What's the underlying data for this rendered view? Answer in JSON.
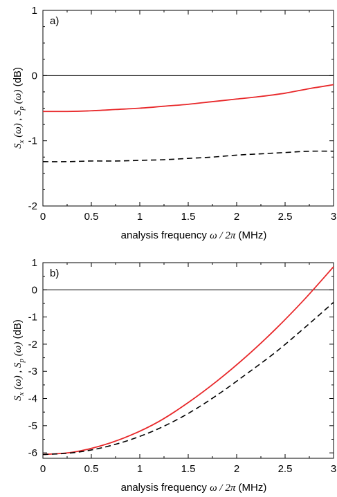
{
  "chart_data": [
    {
      "type": "line",
      "panel_label": "a)",
      "xlabel": "analysis frequency",
      "xlabel_math": "ω / 2π",
      "xlabel_unit": "(MHz)",
      "ylabel_parts": [
        "S",
        "x",
        " (ω) ,  ",
        "S",
        "p",
        " (ω)",
        "  (dB)"
      ],
      "xlim": [
        0,
        3
      ],
      "ylim": [
        -2,
        1
      ],
      "xticks": [
        "0",
        "0.5",
        "1",
        "1.5",
        "2",
        "2.5",
        "3"
      ],
      "xtick_values": [
        0,
        0.5,
        1,
        1.5,
        2,
        2.5,
        3
      ],
      "yticks": [
        "1",
        "0",
        "-1",
        "-2"
      ],
      "ytick_values": [
        1,
        0,
        -1,
        -2
      ],
      "reference_line": 0,
      "series": [
        {
          "style": "solid",
          "color": "#e8282a",
          "x": [
            0,
            0.25,
            0.5,
            0.75,
            1.0,
            1.25,
            1.5,
            1.75,
            2.0,
            2.25,
            2.5,
            2.75,
            3.0
          ],
          "y": [
            -0.55,
            -0.55,
            -0.54,
            -0.52,
            -0.5,
            -0.47,
            -0.44,
            -0.4,
            -0.36,
            -0.32,
            -0.27,
            -0.2,
            -0.14
          ]
        },
        {
          "style": "dashed",
          "color": "#000000",
          "x": [
            0,
            0.25,
            0.5,
            0.75,
            1.0,
            1.25,
            1.5,
            1.75,
            2.0,
            2.25,
            2.5,
            2.75,
            3.0
          ],
          "y": [
            -1.32,
            -1.32,
            -1.31,
            -1.31,
            -1.3,
            -1.29,
            -1.27,
            -1.25,
            -1.22,
            -1.2,
            -1.18,
            -1.16,
            -1.16
          ]
        }
      ]
    },
    {
      "type": "line",
      "panel_label": "b)",
      "xlabel": "analysis frequency",
      "xlabel_math": "ω / 2π",
      "xlabel_unit": "(MHz)",
      "ylabel_parts": [
        "S",
        "x",
        " (ω) ,  ",
        "S",
        "p",
        " (ω)",
        "  (dB)"
      ],
      "xlim": [
        0,
        3
      ],
      "ylim": [
        -6.2,
        1
      ],
      "xticks": [
        "0",
        "0.5",
        "1",
        "1.5",
        "2",
        "2.5",
        "3"
      ],
      "xtick_values": [
        0,
        0.5,
        1,
        1.5,
        2,
        2.5,
        3
      ],
      "yticks": [
        "1",
        "0",
        "-1",
        "-2",
        "-3",
        "-4",
        "-5",
        "-6"
      ],
      "ytick_values": [
        1,
        0,
        -1,
        -2,
        -3,
        -4,
        -5,
        -6
      ],
      "reference_line": 0,
      "series": [
        {
          "style": "solid",
          "color": "#e8282a",
          "x": [
            0,
            0.3,
            0.6,
            0.9,
            1.2,
            1.5,
            1.8,
            2.1,
            2.4,
            2.7,
            3.0
          ],
          "y": [
            -6.06,
            -5.98,
            -5.74,
            -5.36,
            -4.84,
            -4.15,
            -3.35,
            -2.45,
            -1.45,
            -0.35,
            0.85
          ]
        },
        {
          "style": "dashed",
          "color": "#000000",
          "x": [
            0,
            0.3,
            0.6,
            0.9,
            1.2,
            1.5,
            1.8,
            2.1,
            2.4,
            2.7,
            3.0
          ],
          "y": [
            -6.06,
            -6.0,
            -5.82,
            -5.52,
            -5.1,
            -4.55,
            -3.87,
            -3.1,
            -2.3,
            -1.4,
            -0.46
          ]
        }
      ]
    }
  ]
}
